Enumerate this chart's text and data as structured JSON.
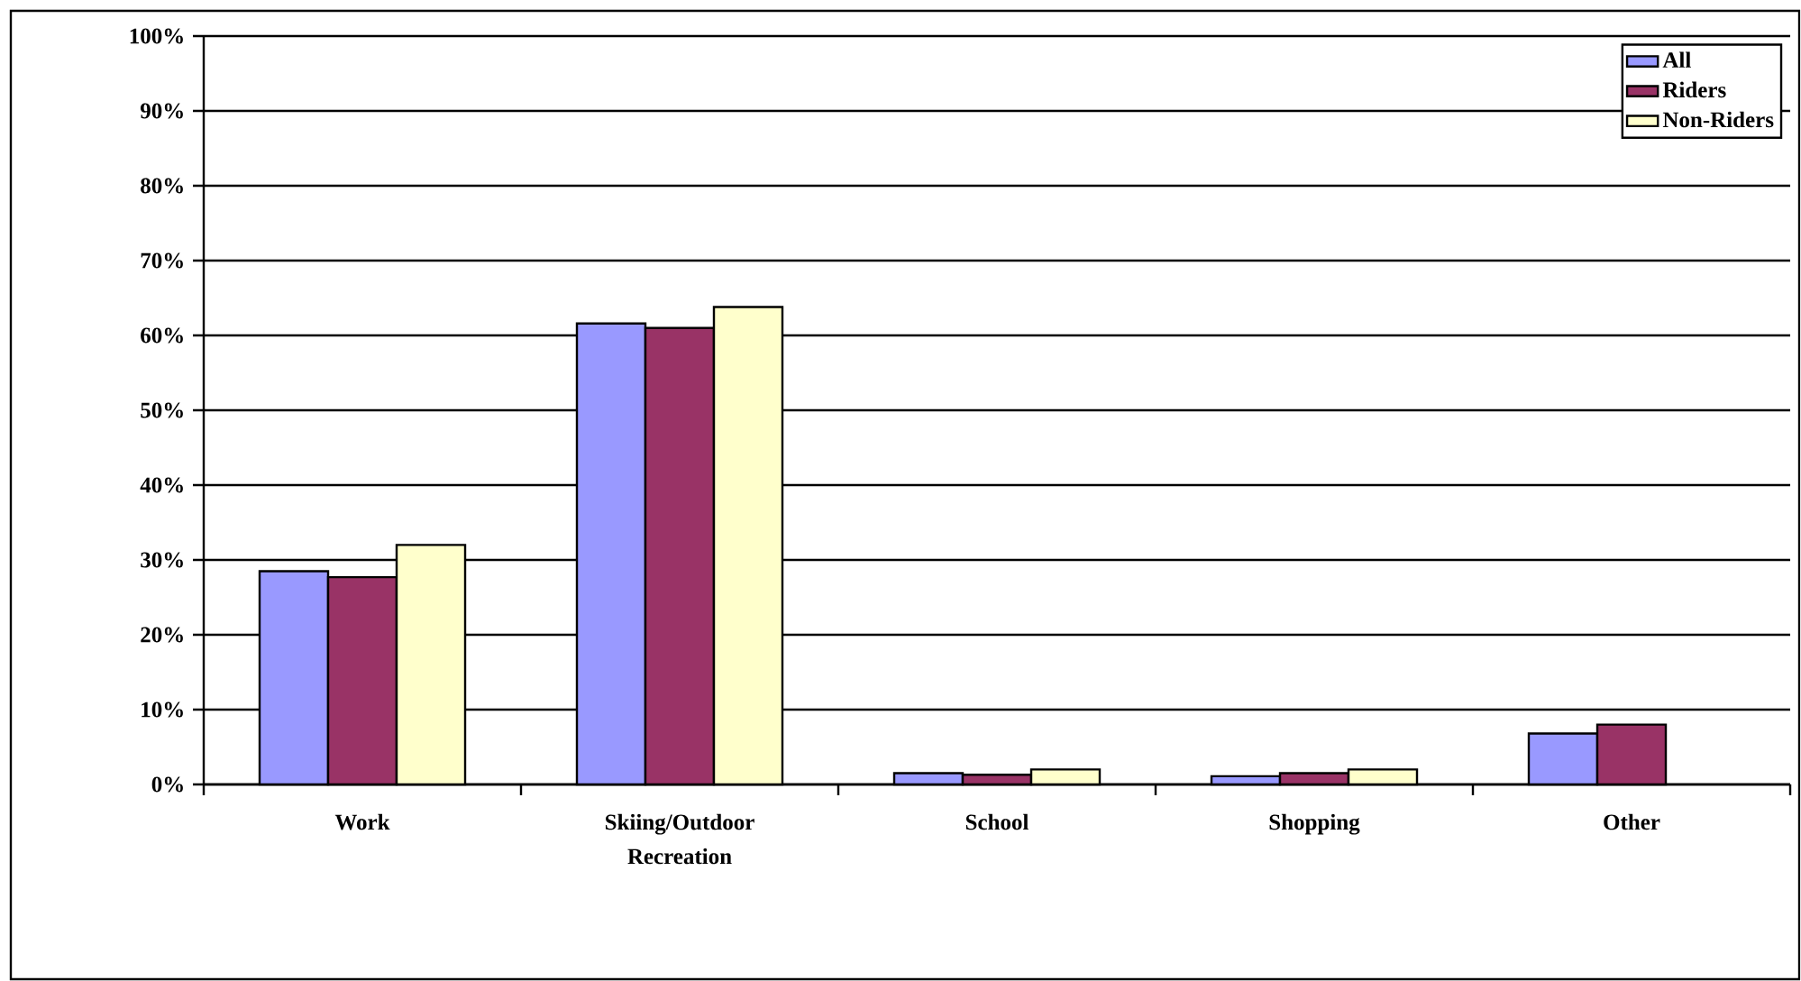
{
  "chart_data": {
    "type": "bar",
    "categories": [
      "Work",
      "Skiing/Outdoor Recreation",
      "School",
      "Shopping",
      "Other"
    ],
    "series": [
      {
        "name": "All",
        "color": "#9999ff",
        "values": [
          28.5,
          61.6,
          1.5,
          1.1,
          6.8
        ]
      },
      {
        "name": "Riders",
        "color": "#993366",
        "values": [
          27.7,
          61,
          1.3,
          1.5,
          8
        ]
      },
      {
        "name": "Non-Riders",
        "color": "#ffffcc",
        "values": [
          32,
          63.8,
          2,
          2,
          null
        ]
      }
    ],
    "ylim": [
      0,
      100
    ],
    "yticks": [
      {
        "value": 0,
        "label": "0%"
      },
      {
        "value": 10,
        "label": "10%"
      },
      {
        "value": 20,
        "label": "20%"
      },
      {
        "value": 30,
        "label": "30%"
      },
      {
        "value": 40,
        "label": "40%"
      },
      {
        "value": 50,
        "label": "50%"
      },
      {
        "value": 60,
        "label": "60%"
      },
      {
        "value": 70,
        "label": "70%"
      },
      {
        "value": 80,
        "label": "80%"
      },
      {
        "value": 90,
        "label": "90%"
      },
      {
        "value": 100,
        "label": "100%"
      }
    ],
    "grid": "y",
    "legend": "top right"
  }
}
